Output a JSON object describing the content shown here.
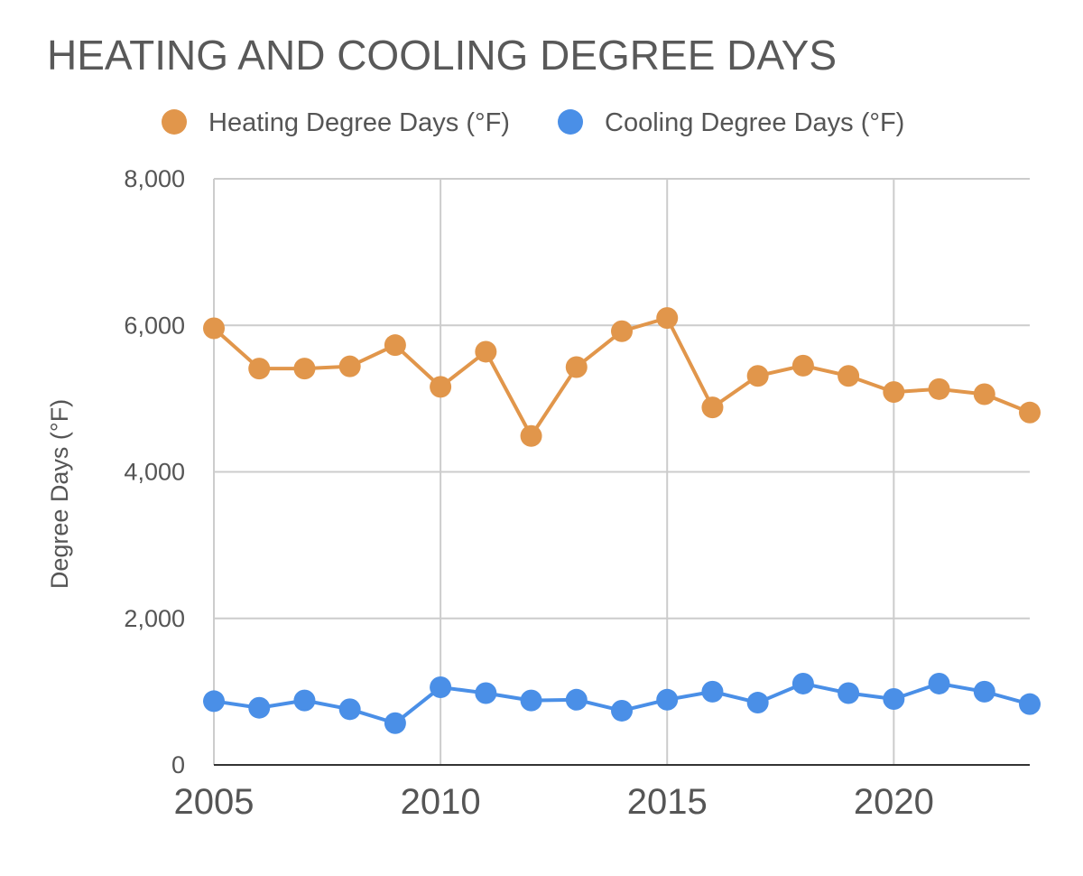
{
  "chart_data": {
    "type": "line",
    "title": "HEATING AND COOLING DEGREE DAYS",
    "xlabel": "",
    "ylabel": "Degree Days (°F)",
    "ylim": [
      0,
      8000
    ],
    "y_ticks": [
      0,
      2000,
      4000,
      6000,
      8000
    ],
    "y_tick_labels": [
      "0",
      "2,000",
      "4,000",
      "6,000",
      "8,000"
    ],
    "x_ticks": [
      2005,
      2010,
      2015,
      2020
    ],
    "x_tick_labels": [
      "2005",
      "2010",
      "2015",
      "2020"
    ],
    "grid": true,
    "legend_position": "top",
    "x": [
      2005,
      2006,
      2007,
      2008,
      2009,
      2010,
      2011,
      2012,
      2013,
      2014,
      2015,
      2016,
      2017,
      2018,
      2019,
      2020,
      2021,
      2022,
      2023
    ],
    "series": [
      {
        "name": "Heating Degree Days (°F)",
        "color": "#e1964b",
        "values": [
          5960,
          5410,
          5410,
          5440,
          5730,
          5160,
          5640,
          4490,
          5430,
          5920,
          6100,
          4880,
          5310,
          5450,
          5310,
          5090,
          5130,
          5060,
          4810
        ]
      },
      {
        "name": "Cooling Degree Days (°F)",
        "color": "#4a8fe7",
        "values": [
          870,
          780,
          880,
          760,
          570,
          1060,
          980,
          880,
          890,
          740,
          890,
          1000,
          850,
          1110,
          980,
          900,
          1110,
          1000,
          830
        ]
      }
    ]
  }
}
